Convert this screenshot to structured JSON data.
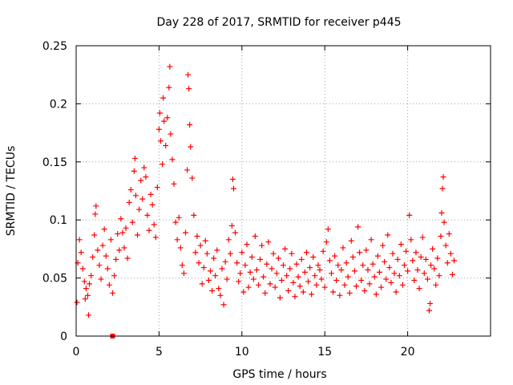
{
  "chart_data": {
    "type": "scatter",
    "title": "Day 228 of 2017, SRMTID for receiver p445",
    "xlabel": "GPS time / hours",
    "ylabel": "SRMTID / TECUs",
    "xlim": [
      0,
      25
    ],
    "ylim": [
      0,
      0.25
    ],
    "x_ticks": [
      0,
      5,
      10,
      15,
      20
    ],
    "x_tick_labels": [
      "0",
      "5",
      "10",
      "15",
      "20"
    ],
    "y_ticks": [
      0,
      0.05,
      0.1,
      0.15,
      0.2,
      0.25
    ],
    "y_tick_labels": [
      "0",
      "0.05",
      "0.1",
      "0.15",
      "0.2",
      "0.25"
    ],
    "grid": true,
    "grid_style": "dotted",
    "marker": "plus",
    "marker_color": "#ff0000",
    "gap_marker": {
      "x": 2.2,
      "y": 0
    },
    "series": [
      {
        "name": "SRMTID",
        "points": [
          [
            0.05,
            0.029
          ],
          [
            0.1,
            0.063
          ],
          [
            0.2,
            0.083
          ],
          [
            0.3,
            0.072
          ],
          [
            0.4,
            0.058
          ],
          [
            0.5,
            0.047
          ],
          [
            0.55,
            0.032
          ],
          [
            0.6,
            0.041
          ],
          [
            0.7,
            0.035
          ],
          [
            0.75,
            0.018
          ],
          [
            0.8,
            0.045
          ],
          [
            0.9,
            0.052
          ],
          [
            1.0,
            0.068
          ],
          [
            1.1,
            0.087
          ],
          [
            1.15,
            0.105
          ],
          [
            1.2,
            0.112
          ],
          [
            1.3,
            0.074
          ],
          [
            1.4,
            0.061
          ],
          [
            1.5,
            0.049
          ],
          [
            1.6,
            0.078
          ],
          [
            1.7,
            0.092
          ],
          [
            1.8,
            0.069
          ],
          [
            1.9,
            0.058
          ],
          [
            2.0,
            0.044
          ],
          [
            2.1,
            0.083
          ],
          [
            2.2,
            0.037
          ],
          [
            2.3,
            0.052
          ],
          [
            2.4,
            0.066
          ],
          [
            2.5,
            0.088
          ],
          [
            2.6,
            0.074
          ],
          [
            2.7,
            0.101
          ],
          [
            2.8,
            0.089
          ],
          [
            2.9,
            0.076
          ],
          [
            3.0,
            0.093
          ],
          [
            3.1,
            0.067
          ],
          [
            3.2,
            0.115
          ],
          [
            3.3,
            0.126
          ],
          [
            3.4,
            0.098
          ],
          [
            3.5,
            0.142
          ],
          [
            3.55,
            0.153
          ],
          [
            3.6,
            0.121
          ],
          [
            3.7,
            0.087
          ],
          [
            3.8,
            0.109
          ],
          [
            3.9,
            0.134
          ],
          [
            4.0,
            0.118
          ],
          [
            4.1,
            0.145
          ],
          [
            4.2,
            0.137
          ],
          [
            4.3,
            0.104
          ],
          [
            4.4,
            0.091
          ],
          [
            4.5,
            0.122
          ],
          [
            4.6,
            0.113
          ],
          [
            4.7,
            0.096
          ],
          [
            4.8,
            0.085
          ],
          [
            4.9,
            0.128
          ],
          [
            5.0,
            0.178
          ],
          [
            5.05,
            0.192
          ],
          [
            5.1,
            0.168
          ],
          [
            5.2,
            0.148
          ],
          [
            5.25,
            0.205
          ],
          [
            5.3,
            0.185
          ],
          [
            5.4,
            0.164
          ],
          [
            5.5,
            0.188
          ],
          [
            5.6,
            0.214
          ],
          [
            5.65,
            0.232
          ],
          [
            5.7,
            0.174
          ],
          [
            5.8,
            0.152
          ],
          [
            5.9,
            0.131
          ],
          [
            6.0,
            0.098
          ],
          [
            6.1,
            0.083
          ],
          [
            6.2,
            0.102
          ],
          [
            6.3,
            0.076
          ],
          [
            6.4,
            0.061
          ],
          [
            6.5,
            0.054
          ],
          [
            6.6,
            0.089
          ],
          [
            6.7,
            0.143
          ],
          [
            6.75,
            0.225
          ],
          [
            6.8,
            0.213
          ],
          [
            6.85,
            0.182
          ],
          [
            6.9,
            0.163
          ],
          [
            7.0,
            0.136
          ],
          [
            7.1,
            0.104
          ],
          [
            7.2,
            0.072
          ],
          [
            7.3,
            0.086
          ],
          [
            7.4,
            0.063
          ],
          [
            7.5,
            0.078
          ],
          [
            7.6,
            0.045
          ],
          [
            7.7,
            0.059
          ],
          [
            7.8,
            0.082
          ],
          [
            7.9,
            0.071
          ],
          [
            8.0,
            0.048
          ],
          [
            8.1,
            0.056
          ],
          [
            8.2,
            0.039
          ],
          [
            8.3,
            0.067
          ],
          [
            8.4,
            0.052
          ],
          [
            8.5,
            0.074
          ],
          [
            8.6,
            0.041
          ],
          [
            8.7,
            0.035
          ],
          [
            8.8,
            0.058
          ],
          [
            8.9,
            0.027
          ],
          [
            9.0,
            0.064
          ],
          [
            9.1,
            0.049
          ],
          [
            9.2,
            0.083
          ],
          [
            9.3,
            0.071
          ],
          [
            9.4,
            0.095
          ],
          [
            9.45,
            0.135
          ],
          [
            9.5,
            0.127
          ],
          [
            9.6,
            0.089
          ],
          [
            9.7,
            0.063
          ],
          [
            9.8,
            0.047
          ],
          [
            9.9,
            0.054
          ],
          [
            10.0,
            0.072
          ],
          [
            10.1,
            0.038
          ],
          [
            10.2,
            0.061
          ],
          [
            10.3,
            0.079
          ],
          [
            10.4,
            0.042
          ],
          [
            10.5,
            0.055
          ],
          [
            10.6,
            0.068
          ],
          [
            10.7,
            0.049
          ],
          [
            10.8,
            0.086
          ],
          [
            10.9,
            0.057
          ],
          [
            11.0,
            0.044
          ],
          [
            11.1,
            0.066
          ],
          [
            11.2,
            0.078
          ],
          [
            11.3,
            0.051
          ],
          [
            11.4,
            0.037
          ],
          [
            11.5,
            0.062
          ],
          [
            11.6,
            0.081
          ],
          [
            11.7,
            0.045
          ],
          [
            11.8,
            0.058
          ],
          [
            11.9,
            0.071
          ],
          [
            12.0,
            0.042
          ],
          [
            12.1,
            0.054
          ],
          [
            12.2,
            0.067
          ],
          [
            12.3,
            0.033
          ],
          [
            12.4,
            0.048
          ],
          [
            12.5,
            0.061
          ],
          [
            12.6,
            0.075
          ],
          [
            12.7,
            0.052
          ],
          [
            12.8,
            0.039
          ],
          [
            12.9,
            0.058
          ],
          [
            13.0,
            0.071
          ],
          [
            13.1,
            0.046
          ],
          [
            13.2,
            0.034
          ],
          [
            13.3,
            0.062
          ],
          [
            13.4,
            0.051
          ],
          [
            13.5,
            0.043
          ],
          [
            13.6,
            0.066
          ],
          [
            13.7,
            0.038
          ],
          [
            13.8,
            0.055
          ],
          [
            13.9,
            0.072
          ],
          [
            14.0,
            0.047
          ],
          [
            14.1,
            0.059
          ],
          [
            14.2,
            0.036
          ],
          [
            14.3,
            0.068
          ],
          [
            14.4,
            0.052
          ],
          [
            14.5,
            0.044
          ],
          [
            14.6,
            0.061
          ],
          [
            14.7,
            0.057
          ],
          [
            14.8,
            0.049
          ],
          [
            14.9,
            0.073
          ],
          [
            15.0,
            0.042
          ],
          [
            15.1,
            0.081
          ],
          [
            15.2,
            0.092
          ],
          [
            15.3,
            0.065
          ],
          [
            15.4,
            0.054
          ],
          [
            15.5,
            0.038
          ],
          [
            15.6,
            0.069
          ],
          [
            15.7,
            0.048
          ],
          [
            15.8,
            0.061
          ],
          [
            15.9,
            0.035
          ],
          [
            16.0,
            0.057
          ],
          [
            16.1,
            0.076
          ],
          [
            16.2,
            0.044
          ],
          [
            16.3,
            0.063
          ],
          [
            16.4,
            0.051
          ],
          [
            16.5,
            0.037
          ],
          [
            16.6,
            0.082
          ],
          [
            16.7,
            0.068
          ],
          [
            16.8,
            0.056
          ],
          [
            16.9,
            0.043
          ],
          [
            17.0,
            0.094
          ],
          [
            17.1,
            0.072
          ],
          [
            17.2,
            0.048
          ],
          [
            17.3,
            0.061
          ],
          [
            17.4,
            0.039
          ],
          [
            17.5,
            0.074
          ],
          [
            17.6,
            0.057
          ],
          [
            17.7,
            0.045
          ],
          [
            17.8,
            0.083
          ],
          [
            17.9,
            0.062
          ],
          [
            18.0,
            0.051
          ],
          [
            18.1,
            0.036
          ],
          [
            18.2,
            0.069
          ],
          [
            18.3,
            0.055
          ],
          [
            18.4,
            0.042
          ],
          [
            18.5,
            0.078
          ],
          [
            18.6,
            0.064
          ],
          [
            18.7,
            0.049
          ],
          [
            18.8,
            0.087
          ],
          [
            18.9,
            0.059
          ],
          [
            19.0,
            0.046
          ],
          [
            19.1,
            0.071
          ],
          [
            19.2,
            0.054
          ],
          [
            19.3,
            0.038
          ],
          [
            19.4,
            0.066
          ],
          [
            19.5,
            0.052
          ],
          [
            19.6,
            0.079
          ],
          [
            19.7,
            0.044
          ],
          [
            19.8,
            0.061
          ],
          [
            19.9,
            0.073
          ],
          [
            20.0,
            0.056
          ],
          [
            20.1,
            0.104
          ],
          [
            20.2,
            0.083
          ],
          [
            20.3,
            0.065
          ],
          [
            20.4,
            0.048
          ],
          [
            20.5,
            0.072
          ],
          [
            20.6,
            0.057
          ],
          [
            20.7,
            0.041
          ],
          [
            20.8,
            0.068
          ],
          [
            20.9,
            0.085
          ],
          [
            21.0,
            0.054
          ],
          [
            21.1,
            0.066
          ],
          [
            21.2,
            0.049
          ],
          [
            21.3,
            0.022
          ],
          [
            21.35,
            0.028
          ],
          [
            21.4,
            0.061
          ],
          [
            21.5,
            0.075
          ],
          [
            21.6,
            0.058
          ],
          [
            21.7,
            0.044
          ],
          [
            21.8,
            0.067
          ],
          [
            21.9,
            0.052
          ],
          [
            22.0,
            0.086
          ],
          [
            22.05,
            0.106
          ],
          [
            22.1,
            0.127
          ],
          [
            22.15,
            0.137
          ],
          [
            22.2,
            0.098
          ],
          [
            22.3,
            0.078
          ],
          [
            22.4,
            0.063
          ],
          [
            22.5,
            0.088
          ],
          [
            22.6,
            0.071
          ],
          [
            22.7,
            0.053
          ],
          [
            22.8,
            0.065
          ]
        ]
      }
    ]
  }
}
